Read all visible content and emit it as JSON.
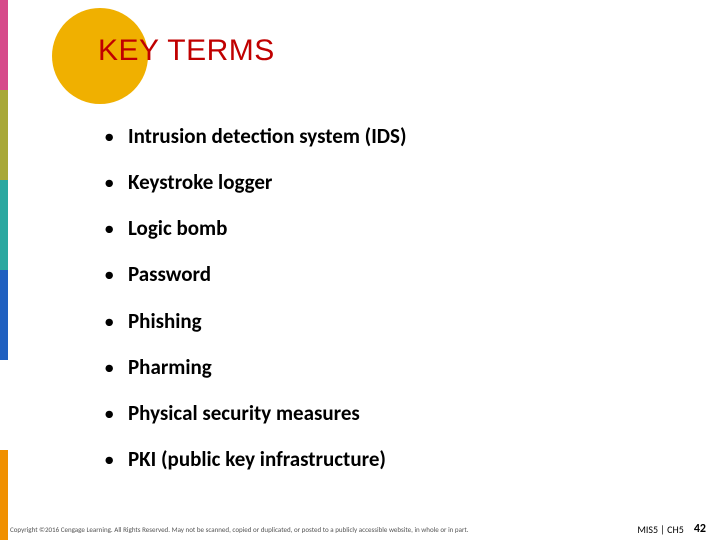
{
  "title": {
    "text": "KEY TERMS",
    "color": "#c00000"
  },
  "circle_color": "#f0b000",
  "strip_colors": [
    "#d64a8a",
    "#a8a838",
    "#2aa8a0",
    "#2060c0",
    "#ffffff",
    "#f09000"
  ],
  "terms": [
    "Intrusion detection system (IDS)",
    "Keystroke logger",
    "Logic bomb",
    "Password",
    "Phishing",
    "Pharming",
    "Physical security measures",
    "PKI (public key infrastructure)"
  ],
  "footer": {
    "copyright": "Copyright ©2016 Cengage Learning. All Rights Reserved. May not be scanned, copied or duplicated, or posted to a publicly accessible website, in whole or in part.",
    "course": "MIS5 | CH5",
    "page": "42"
  }
}
